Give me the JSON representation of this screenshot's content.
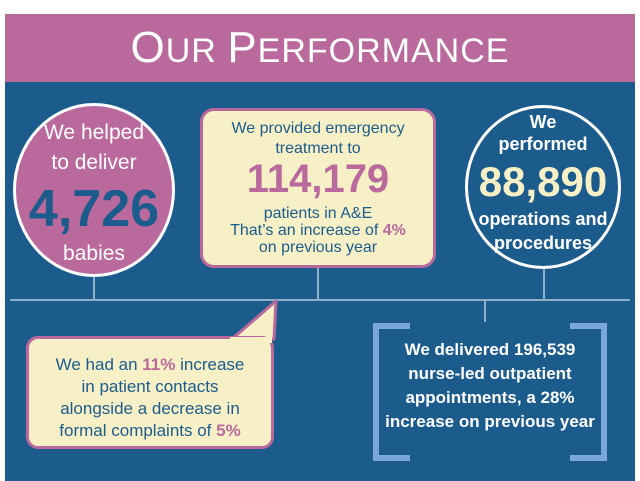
{
  "banner": {
    "title_first_letter": "O",
    "title_rest_1": "UR ",
    "title_second_letter": "P",
    "title_rest_2": "ERFORMANCE"
  },
  "babies": {
    "line1": "We helped",
    "line2": "to deliver",
    "number": "4,726",
    "line3": "babies"
  },
  "emergency": {
    "line1": "We provided emergency",
    "line2": "treatment to",
    "number": "114,179",
    "line3": "patients in A&E",
    "line4_pre": "That’s an increase of ",
    "line4_pct": "4%",
    "line5": "on previous year"
  },
  "operations": {
    "line1": "We",
    "line2": "performed",
    "number": "88,890",
    "line3": "operations and",
    "line4": "procedures"
  },
  "contacts": {
    "l1_pre": "We had an ",
    "l1_pct": "11%",
    "l1_post": " increase",
    "l2": "in patient contacts",
    "l3": "alongside a decrease in",
    "l4_pre": "formal complaints of ",
    "l4_pct": "5%"
  },
  "outpatient": {
    "line1": "We delivered 196,539",
    "line2": "nurse-led outpatient",
    "line3": "appointments, a 28%",
    "line4": "increase on previous year"
  },
  "colors": {
    "pink": "#b9699c",
    "navy": "#1b5c8d",
    "cream": "#f7f0c6",
    "lightblue": "#7aa6d8"
  }
}
